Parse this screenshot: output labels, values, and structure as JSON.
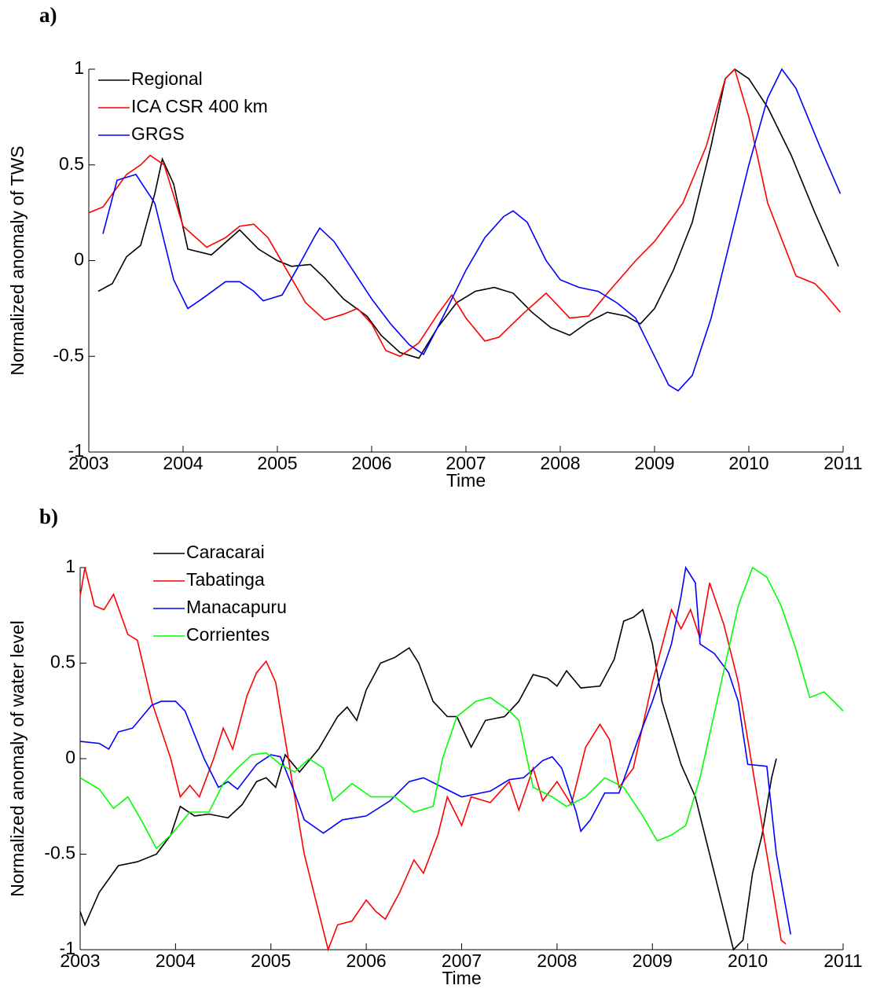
{
  "chart_data": [
    {
      "type": "line",
      "panel_label": "a)",
      "xlabel": "Time",
      "ylabel": "Normalized anomaly of TWS",
      "xlim": [
        2003,
        2011
      ],
      "xticks": [
        2003,
        2004,
        2005,
        2006,
        2007,
        2008,
        2009,
        2010,
        2011
      ],
      "ylim": [
        -1,
        1
      ],
      "yticks": [
        -1,
        -0.5,
        0,
        0.5,
        1
      ],
      "grid": false,
      "legend": "upper left",
      "series": [
        {
          "name": "Regional",
          "color": "#000000",
          "x": [
            2003.1,
            2003.25,
            2003.4,
            2003.55,
            2003.7,
            2003.78,
            2003.9,
            2004.05,
            2004.3,
            2004.6,
            2004.8,
            2005.0,
            2005.15,
            2005.35,
            2005.5,
            2005.7,
            2005.95,
            2006.1,
            2006.3,
            2006.5,
            2006.7,
            2006.9,
            2007.1,
            2007.3,
            2007.5,
            2007.7,
            2007.9,
            2008.1,
            2008.3,
            2008.5,
            2008.7,
            2008.85,
            2009.0,
            2009.2,
            2009.4,
            2009.6,
            2009.75,
            2009.85,
            2010.0,
            2010.2,
            2010.45,
            2010.7,
            2010.95
          ],
          "values": [
            -0.16,
            -0.12,
            0.02,
            0.08,
            0.35,
            0.53,
            0.4,
            0.06,
            0.03,
            0.16,
            0.06,
            0.0,
            -0.03,
            -0.02,
            -0.09,
            -0.2,
            -0.29,
            -0.39,
            -0.48,
            -0.51,
            -0.35,
            -0.22,
            -0.16,
            -0.14,
            -0.17,
            -0.27,
            -0.35,
            -0.39,
            -0.32,
            -0.27,
            -0.29,
            -0.33,
            -0.25,
            -0.05,
            0.2,
            0.6,
            0.95,
            1.0,
            0.95,
            0.8,
            0.55,
            0.25,
            -0.03
          ]
        },
        {
          "name": "ICA CSR 400 km",
          "color": "#ff0000",
          "x": [
            2003.0,
            2003.15,
            2003.4,
            2003.55,
            2003.65,
            2003.8,
            2004.0,
            2004.25,
            2004.45,
            2004.6,
            2004.75,
            2004.9,
            2005.1,
            2005.3,
            2005.5,
            2005.7,
            2005.85,
            2006.0,
            2006.15,
            2006.3,
            2006.5,
            2006.7,
            2006.85,
            2007.0,
            2007.2,
            2007.35,
            2007.6,
            2007.85,
            2008.1,
            2008.3,
            2008.5,
            2008.8,
            2009.0,
            2009.3,
            2009.55,
            2009.75,
            2009.85,
            2010.0,
            2010.2,
            2010.5,
            2010.7,
            2010.8,
            2010.97
          ],
          "values": [
            0.25,
            0.28,
            0.45,
            0.5,
            0.55,
            0.5,
            0.18,
            0.07,
            0.12,
            0.18,
            0.19,
            0.12,
            -0.05,
            -0.22,
            -0.31,
            -0.28,
            -0.25,
            -0.33,
            -0.47,
            -0.5,
            -0.43,
            -0.28,
            -0.18,
            -0.3,
            -0.42,
            -0.4,
            -0.28,
            -0.17,
            -0.3,
            -0.29,
            -0.17,
            0.0,
            0.1,
            0.3,
            0.6,
            0.95,
            1.0,
            0.75,
            0.3,
            -0.08,
            -0.12,
            -0.17,
            -0.27
          ]
        },
        {
          "name": "GRGS",
          "color": "#0000ff",
          "x": [
            2003.15,
            2003.3,
            2003.5,
            2003.7,
            2003.9,
            2004.05,
            2004.2,
            2004.45,
            2004.6,
            2004.75,
            2004.85,
            2005.05,
            2005.2,
            2005.4,
            2005.45,
            2005.6,
            2005.8,
            2006.0,
            2006.2,
            2006.4,
            2006.55,
            2006.75,
            2007.0,
            2007.2,
            2007.4,
            2007.5,
            2007.65,
            2007.85,
            2008.0,
            2008.2,
            2008.4,
            2008.6,
            2008.8,
            2009.0,
            2009.15,
            2009.25,
            2009.4,
            2009.6,
            2009.8,
            2010.0,
            2010.2,
            2010.35,
            2010.5,
            2010.75,
            2010.97
          ],
          "values": [
            0.14,
            0.42,
            0.45,
            0.3,
            -0.1,
            -0.25,
            -0.2,
            -0.11,
            -0.11,
            -0.16,
            -0.21,
            -0.18,
            -0.05,
            0.13,
            0.17,
            0.1,
            -0.05,
            -0.2,
            -0.33,
            -0.44,
            -0.49,
            -0.3,
            -0.05,
            0.12,
            0.23,
            0.26,
            0.2,
            0.0,
            -0.1,
            -0.14,
            -0.16,
            -0.22,
            -0.3,
            -0.5,
            -0.65,
            -0.68,
            -0.6,
            -0.3,
            0.1,
            0.5,
            0.85,
            1.0,
            0.9,
            0.6,
            0.35
          ]
        }
      ]
    },
    {
      "type": "line",
      "panel_label": "b)",
      "xlabel": "Time",
      "ylabel": "Normalized anomaly of water level",
      "xlim": [
        2003,
        2011
      ],
      "xticks": [
        2003,
        2004,
        2005,
        2006,
        2007,
        2008,
        2009,
        2010,
        2011
      ],
      "ylim": [
        -1,
        1
      ],
      "yticks": [
        -1,
        -0.5,
        0,
        0.5,
        1
      ],
      "grid": false,
      "legend": "upper left",
      "series": [
        {
          "name": "Caracarai",
          "color": "#000000",
          "x": [
            2003.0,
            2003.05,
            2003.2,
            2003.4,
            2003.6,
            2003.8,
            2003.95,
            2004.05,
            2004.2,
            2004.35,
            2004.55,
            2004.7,
            2004.85,
            2004.95,
            2005.05,
            2005.15,
            2005.3,
            2005.5,
            2005.7,
            2005.8,
            2005.9,
            2006.0,
            2006.15,
            2006.3,
            2006.45,
            2006.55,
            2006.7,
            2006.85,
            2006.95,
            2007.1,
            2007.25,
            2007.45,
            2007.6,
            2007.75,
            2007.9,
            2008.0,
            2008.1,
            2008.25,
            2008.45,
            2008.6,
            2008.7,
            2008.8,
            2008.9,
            2009.0,
            2009.1,
            2009.3,
            2009.45,
            2009.6,
            2009.75,
            2009.85,
            2009.95,
            2010.05,
            2010.15,
            2010.25,
            2010.3
          ],
          "values": [
            -0.8,
            -0.87,
            -0.7,
            -0.56,
            -0.54,
            -0.5,
            -0.4,
            -0.25,
            -0.3,
            -0.29,
            -0.31,
            -0.24,
            -0.12,
            -0.1,
            -0.15,
            0.02,
            -0.07,
            0.05,
            0.22,
            0.27,
            0.2,
            0.36,
            0.5,
            0.53,
            0.58,
            0.5,
            0.3,
            0.22,
            0.22,
            0.06,
            0.2,
            0.22,
            0.3,
            0.44,
            0.42,
            0.38,
            0.46,
            0.37,
            0.38,
            0.52,
            0.72,
            0.74,
            0.78,
            0.6,
            0.3,
            -0.03,
            -0.2,
            -0.5,
            -0.8,
            -1.0,
            -0.95,
            -0.6,
            -0.4,
            -0.1,
            0.0
          ]
        },
        {
          "name": "Tabatinga",
          "color": "#ff0000",
          "x": [
            2003.0,
            2003.05,
            2003.15,
            2003.25,
            2003.35,
            2003.5,
            2003.6,
            2003.75,
            2003.95,
            2004.05,
            2004.15,
            2004.25,
            2004.4,
            2004.5,
            2004.6,
            2004.75,
            2004.85,
            2004.95,
            2005.05,
            2005.2,
            2005.35,
            2005.5,
            2005.6,
            2005.7,
            2005.85,
            2006.0,
            2006.1,
            2006.2,
            2006.35,
            2006.5,
            2006.6,
            2006.75,
            2006.85,
            2007.0,
            2007.1,
            2007.3,
            2007.5,
            2007.6,
            2007.75,
            2007.85,
            2008.0,
            2008.15,
            2008.3,
            2008.45,
            2008.55,
            2008.65,
            2008.8,
            2009.0,
            2009.2,
            2009.3,
            2009.4,
            2009.5,
            2009.6,
            2009.75,
            2009.9,
            2010.0,
            2010.2,
            2010.35,
            2010.4
          ],
          "values": [
            0.85,
            1.0,
            0.8,
            0.78,
            0.86,
            0.65,
            0.62,
            0.3,
            0.0,
            -0.2,
            -0.14,
            -0.2,
            0.0,
            0.16,
            0.05,
            0.33,
            0.45,
            0.51,
            0.4,
            -0.05,
            -0.5,
            -0.8,
            -1.0,
            -0.87,
            -0.85,
            -0.74,
            -0.8,
            -0.84,
            -0.7,
            -0.53,
            -0.6,
            -0.4,
            -0.2,
            -0.35,
            -0.2,
            -0.23,
            -0.12,
            -0.27,
            -0.05,
            -0.22,
            -0.12,
            -0.24,
            0.06,
            0.18,
            0.1,
            -0.15,
            -0.05,
            0.4,
            0.78,
            0.68,
            0.78,
            0.63,
            0.92,
            0.7,
            0.4,
            0.1,
            -0.5,
            -0.95,
            -0.97
          ]
        },
        {
          "name": "Manacapuru",
          "color": "#0000ff",
          "x": [
            2003.0,
            2003.2,
            2003.3,
            2003.4,
            2003.55,
            2003.75,
            2003.85,
            2004.0,
            2004.1,
            2004.3,
            2004.45,
            2004.55,
            2004.65,
            2004.85,
            2005.0,
            2005.1,
            2005.25,
            2005.35,
            2005.55,
            2005.75,
            2006.0,
            2006.25,
            2006.45,
            2006.6,
            2006.8,
            2007.0,
            2007.3,
            2007.5,
            2007.65,
            2007.85,
            2007.95,
            2008.05,
            2008.2,
            2008.25,
            2008.35,
            2008.5,
            2008.65,
            2008.85,
            2009.0,
            2009.2,
            2009.3,
            2009.35,
            2009.45,
            2009.5,
            2009.65,
            2009.8,
            2009.9,
            2010.0,
            2010.2,
            2010.3,
            2010.45
          ],
          "values": [
            0.09,
            0.08,
            0.05,
            0.14,
            0.16,
            0.28,
            0.3,
            0.3,
            0.25,
            0.0,
            -0.15,
            -0.12,
            -0.16,
            -0.03,
            0.02,
            0.01,
            -0.18,
            -0.32,
            -0.39,
            -0.32,
            -0.3,
            -0.22,
            -0.12,
            -0.1,
            -0.15,
            -0.2,
            -0.17,
            -0.11,
            -0.1,
            -0.01,
            0.01,
            -0.05,
            -0.28,
            -0.38,
            -0.32,
            -0.18,
            -0.18,
            0.1,
            0.3,
            0.6,
            0.85,
            1.0,
            0.92,
            0.6,
            0.55,
            0.45,
            0.3,
            -0.03,
            -0.04,
            -0.5,
            -0.92
          ]
        },
        {
          "name": "Corrientes",
          "color": "#00ff00",
          "x": [
            2003.0,
            2003.2,
            2003.35,
            2003.5,
            2003.65,
            2003.8,
            2003.95,
            2004.15,
            2004.35,
            2004.5,
            2004.65,
            2004.8,
            2004.95,
            2005.1,
            2005.25,
            2005.4,
            2005.55,
            2005.65,
            2005.85,
            2006.05,
            2006.3,
            2006.5,
            2006.7,
            2006.8,
            2006.95,
            2007.15,
            2007.3,
            2007.5,
            2007.6,
            2007.75,
            2007.95,
            2008.1,
            2008.3,
            2008.5,
            2008.7,
            2008.9,
            2009.05,
            2009.2,
            2009.35,
            2009.5,
            2009.7,
            2009.9,
            2010.05,
            2010.2,
            2010.35,
            2010.5,
            2010.65,
            2010.8,
            2010.9,
            2011.0
          ],
          "values": [
            -0.1,
            -0.16,
            -0.26,
            -0.2,
            -0.33,
            -0.47,
            -0.4,
            -0.28,
            -0.28,
            -0.13,
            -0.05,
            0.02,
            0.03,
            -0.03,
            -0.07,
            0.0,
            -0.05,
            -0.22,
            -0.13,
            -0.2,
            -0.2,
            -0.28,
            -0.25,
            0.0,
            0.22,
            0.3,
            0.32,
            0.25,
            0.2,
            -0.15,
            -0.2,
            -0.25,
            -0.2,
            -0.1,
            -0.15,
            -0.3,
            -0.43,
            -0.4,
            -0.35,
            -0.1,
            0.35,
            0.8,
            1.0,
            0.95,
            0.8,
            0.58,
            0.32,
            0.35,
            0.3,
            0.25
          ]
        }
      ]
    }
  ]
}
